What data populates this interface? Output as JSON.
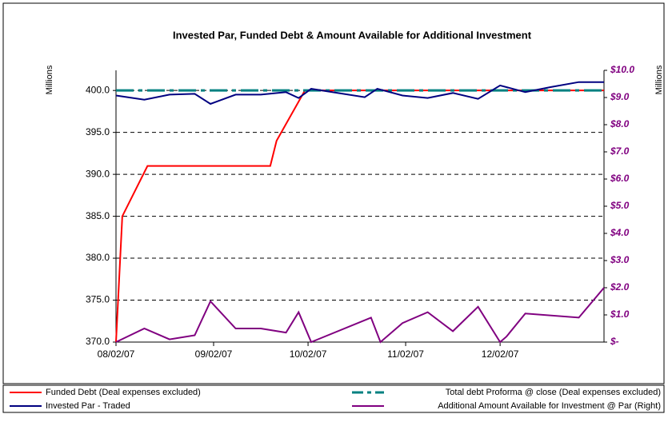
{
  "chart_data": {
    "type": "line",
    "title": "Invested Par, Funded Debt & Amount Available for Additional Investment",
    "ylabel": "Millions",
    "y2label": "Millions",
    "xlim": [
      "08/02/07",
      "01/04/08"
    ],
    "xticks": [
      "08/02/07",
      "09/02/07",
      "10/02/07",
      "11/02/07",
      "12/02/07"
    ],
    "ylim": [
      370,
      402.4
    ],
    "yticks": [
      {
        "value": 370,
        "label": "370.0"
      },
      {
        "value": 375,
        "label": "375.0"
      },
      {
        "value": 380,
        "label": "380.0"
      },
      {
        "value": 385,
        "label": "385.0"
      },
      {
        "value": 390,
        "label": "390.0"
      },
      {
        "value": 395,
        "label": "395.0"
      },
      {
        "value": 400,
        "label": "400.0"
      }
    ],
    "y2lim": [
      0,
      10
    ],
    "y2ticks": [
      {
        "value": 0,
        "label": "$-"
      },
      {
        "value": 1,
        "label": "$1.0"
      },
      {
        "value": 2,
        "label": "$2.0"
      },
      {
        "value": 3,
        "label": "$3.0"
      },
      {
        "value": 4,
        "label": "$4.0"
      },
      {
        "value": 5,
        "label": "$5.0"
      },
      {
        "value": 6,
        "label": "$6.0"
      },
      {
        "value": 7,
        "label": "$7.0"
      },
      {
        "value": 8,
        "label": "$8.0"
      },
      {
        "value": 9,
        "label": "$9.0"
      },
      {
        "value": 10,
        "label": "$10.0"
      }
    ],
    "grid": true,
    "legend": "bottom",
    "series": [
      {
        "name": "Funded Debt (Deal expenses excluded)",
        "color": "#ff0000",
        "linestyle": "solid",
        "x": [
          "08/02/07",
          "08/04/07",
          "08/12/07",
          "09/20/07",
          "09/22/07",
          "10/01/07",
          "01/04/08"
        ],
        "values": [
          370,
          385,
          391,
          391,
          394,
          400,
          400
        ]
      },
      {
        "name": "Total debt Proforma @ close (Deal expenses excluded)",
        "color": "#008080",
        "linestyle": "dashdot",
        "x": [
          "08/02/07",
          "01/04/08"
        ],
        "values": [
          400,
          400
        ]
      },
      {
        "name": "Invested Par - Traded",
        "color": "#000080",
        "linestyle": "solid",
        "x": [
          "08/02/07",
          "08/11/07",
          "08/19/07",
          "08/27/07",
          "09/01/07",
          "09/09/07",
          "09/17/07",
          "09/25/07",
          "09/29/07",
          "10/03/07",
          "10/20/07",
          "10/24/07",
          "11/01/07",
          "11/09/07",
          "11/17/07",
          "11/25/07",
          "12/02/07",
          "12/10/07",
          "12/18/07",
          "12/27/07",
          "01/04/08"
        ],
        "values": [
          399.4,
          398.9,
          399.5,
          399.6,
          398.4,
          399.5,
          399.5,
          399.8,
          399.1,
          400.2,
          399.2,
          400.2,
          399.4,
          399.1,
          399.7,
          399.0,
          400.6,
          399.8,
          400.4,
          401.0,
          401.0
        ]
      },
      {
        "name": "Additional Amount Available for Investment @ Par (Right)",
        "color": "#800080",
        "linestyle": "solid",
        "axis": "y2",
        "x": [
          "08/02/07",
          "08/11/07",
          "08/19/07",
          "08/27/07",
          "09/01/07",
          "09/09/07",
          "09/17/07",
          "09/25/07",
          "09/29/07",
          "10/03/07",
          "10/22/07",
          "10/25/07",
          "11/01/07",
          "11/09/07",
          "11/17/07",
          "11/25/07",
          "12/02/07",
          "12/04/07",
          "12/10/07",
          "12/27/07",
          "01/04/08"
        ],
        "values": [
          0,
          0.5,
          0.1,
          0.25,
          1.5,
          0.5,
          0.5,
          0.35,
          1.1,
          0,
          0.9,
          0,
          0.7,
          1.1,
          0.4,
          1.3,
          0,
          0.2,
          1.05,
          0.9,
          2.0
        ]
      }
    ]
  }
}
